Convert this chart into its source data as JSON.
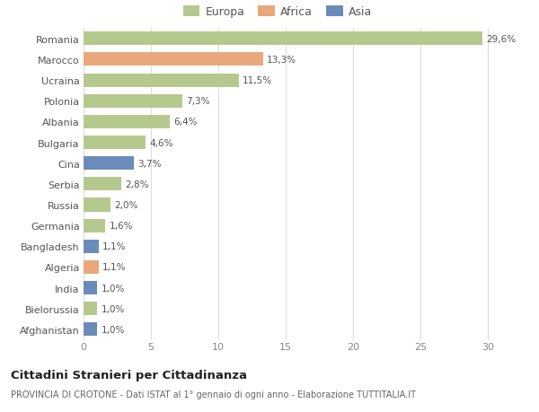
{
  "countries": [
    "Romania",
    "Marocco",
    "Ucraina",
    "Polonia",
    "Albania",
    "Bulgaria",
    "Cina",
    "Serbia",
    "Russia",
    "Germania",
    "Bangladesh",
    "Algeria",
    "India",
    "Bielorussia",
    "Afghanistan"
  ],
  "values": [
    29.6,
    13.3,
    11.5,
    7.3,
    6.4,
    4.6,
    3.7,
    2.8,
    2.0,
    1.6,
    1.1,
    1.1,
    1.0,
    1.0,
    1.0
  ],
  "labels": [
    "29,6%",
    "13,3%",
    "11,5%",
    "7,3%",
    "6,4%",
    "4,6%",
    "3,7%",
    "2,8%",
    "2,0%",
    "1,6%",
    "1,1%",
    "1,1%",
    "1,0%",
    "1,0%",
    "1,0%"
  ],
  "continents": [
    "Europa",
    "Africa",
    "Europa",
    "Europa",
    "Europa",
    "Europa",
    "Asia",
    "Europa",
    "Europa",
    "Europa",
    "Asia",
    "Africa",
    "Asia",
    "Europa",
    "Asia"
  ],
  "colors": {
    "Europa": "#b5c98e",
    "Africa": "#e8a87c",
    "Asia": "#6b8cba"
  },
  "title": "Cittadini Stranieri per Cittadinanza",
  "subtitle": "PROVINCIA DI CROTONE - Dati ISTAT al 1° gennaio di ogni anno - Elaborazione TUTTITALIA.IT",
  "xlim": [
    0,
    32
  ],
  "xticks": [
    0,
    5,
    10,
    15,
    20,
    25,
    30
  ],
  "background_color": "#ffffff",
  "grid_color": "#dddddd"
}
